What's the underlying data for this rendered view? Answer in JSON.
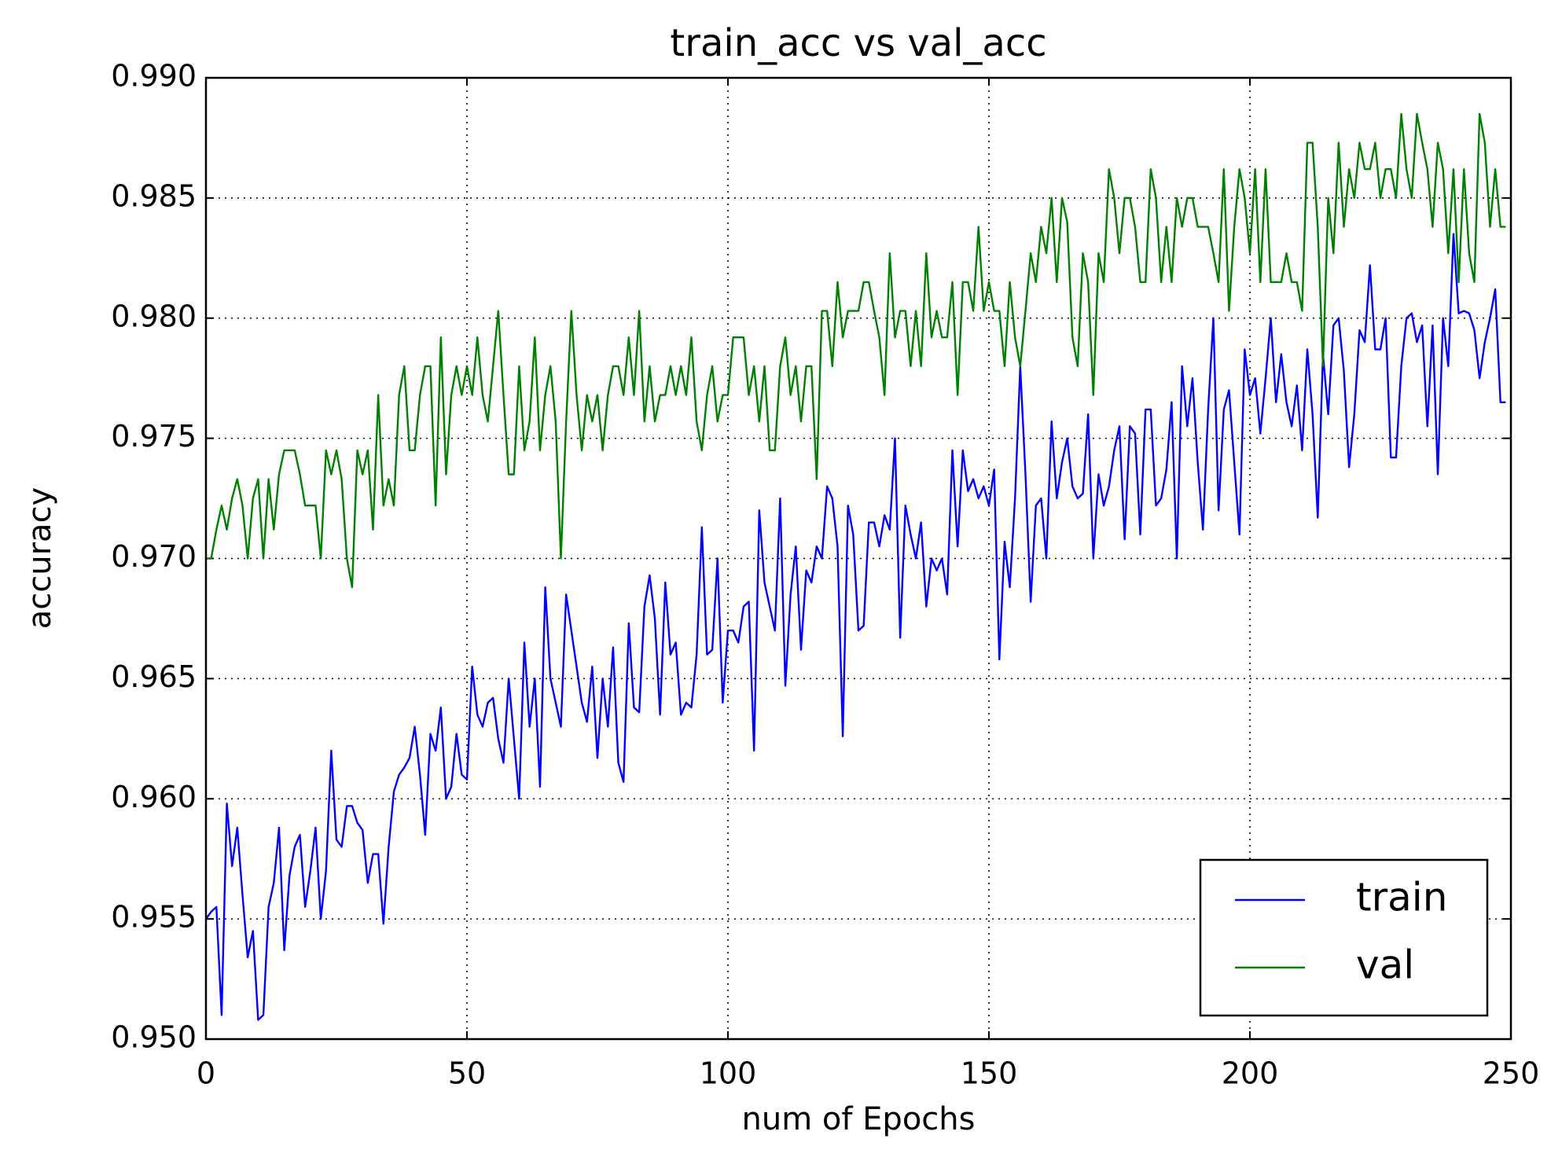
{
  "chart_data": {
    "type": "line",
    "title": "train_acc vs val_acc",
    "x_label": "num of Epochs",
    "y_label": "accuracy",
    "x": [
      0,
      1,
      2,
      3,
      4,
      5,
      6,
      7,
      8,
      9,
      10,
      11,
      12,
      13,
      14,
      15,
      16,
      17,
      18,
      19,
      20,
      21,
      22,
      23,
      24,
      25,
      26,
      27,
      28,
      29,
      30,
      31,
      32,
      33,
      34,
      35,
      36,
      37,
      38,
      39,
      40,
      41,
      42,
      43,
      44,
      45,
      46,
      47,
      48,
      49,
      50,
      51,
      52,
      53,
      54,
      55,
      56,
      57,
      58,
      59,
      60,
      61,
      62,
      63,
      64,
      65,
      66,
      67,
      68,
      69,
      70,
      71,
      72,
      73,
      74,
      75,
      76,
      77,
      78,
      79,
      80,
      81,
      82,
      83,
      84,
      85,
      86,
      87,
      88,
      89,
      90,
      91,
      92,
      93,
      94,
      95,
      96,
      97,
      98,
      99,
      100,
      101,
      102,
      103,
      104,
      105,
      106,
      107,
      108,
      109,
      110,
      111,
      112,
      113,
      114,
      115,
      116,
      117,
      118,
      119,
      120,
      121,
      122,
      123,
      124,
      125,
      126,
      127,
      128,
      129,
      130,
      131,
      132,
      133,
      134,
      135,
      136,
      137,
      138,
      139,
      140,
      141,
      142,
      143,
      144,
      145,
      146,
      147,
      148,
      149,
      150,
      151,
      152,
      153,
      154,
      155,
      156,
      157,
      158,
      159,
      160,
      161,
      162,
      163,
      164,
      165,
      166,
      167,
      168,
      169,
      170,
      171,
      172,
      173,
      174,
      175,
      176,
      177,
      178,
      179,
      180,
      181,
      182,
      183,
      184,
      185,
      186,
      187,
      188,
      189,
      190,
      191,
      192,
      193,
      194,
      195,
      196,
      197,
      198,
      199,
      200,
      201,
      202,
      203,
      204,
      205,
      206,
      207,
      208,
      209,
      210,
      211,
      212,
      213,
      214,
      215,
      216,
      217,
      218,
      219,
      220,
      221,
      222,
      223,
      224,
      225,
      226,
      227,
      228,
      229,
      230,
      231,
      232,
      233,
      234,
      235,
      236,
      237,
      238,
      239,
      240,
      241,
      242,
      243,
      244,
      245,
      246,
      247,
      248,
      249
    ],
    "series": [
      {
        "name": "train",
        "color": "#0000ff",
        "values": [
          0.955,
          0.9553,
          0.9555,
          0.951,
          0.9598,
          0.9572,
          0.9588,
          0.956,
          0.9534,
          0.9545,
          0.9508,
          0.951,
          0.9555,
          0.9565,
          0.9588,
          0.9537,
          0.9568,
          0.958,
          0.9585,
          0.9555,
          0.957,
          0.9588,
          0.955,
          0.957,
          0.962,
          0.9583,
          0.958,
          0.9597,
          0.9597,
          0.959,
          0.9587,
          0.9565,
          0.9577,
          0.9577,
          0.9548,
          0.958,
          0.9603,
          0.961,
          0.9613,
          0.9617,
          0.963,
          0.961,
          0.9585,
          0.9627,
          0.962,
          0.9638,
          0.96,
          0.9605,
          0.9627,
          0.961,
          0.9608,
          0.9655,
          0.9635,
          0.963,
          0.964,
          0.9642,
          0.9625,
          0.9615,
          0.965,
          0.9625,
          0.96,
          0.9665,
          0.963,
          0.965,
          0.9605,
          0.9688,
          0.965,
          0.964,
          0.963,
          0.9685,
          0.967,
          0.9655,
          0.964,
          0.9632,
          0.9655,
          0.9617,
          0.965,
          0.963,
          0.9663,
          0.9615,
          0.9607,
          0.9673,
          0.9638,
          0.9636,
          0.968,
          0.9693,
          0.9675,
          0.9635,
          0.969,
          0.966,
          0.9665,
          0.9635,
          0.964,
          0.9638,
          0.966,
          0.9713,
          0.966,
          0.9662,
          0.97,
          0.964,
          0.967,
          0.967,
          0.9665,
          0.968,
          0.9682,
          0.962,
          0.972,
          0.969,
          0.968,
          0.967,
          0.9725,
          0.9647,
          0.9685,
          0.9705,
          0.9662,
          0.9695,
          0.969,
          0.9705,
          0.97,
          0.973,
          0.9725,
          0.9705,
          0.9626,
          0.9722,
          0.971,
          0.967,
          0.9672,
          0.9715,
          0.9715,
          0.9705,
          0.9718,
          0.9712,
          0.975,
          0.9667,
          0.9722,
          0.971,
          0.97,
          0.9715,
          0.968,
          0.97,
          0.9695,
          0.97,
          0.9685,
          0.9745,
          0.9705,
          0.9745,
          0.9728,
          0.9733,
          0.9725,
          0.973,
          0.9722,
          0.9737,
          0.9658,
          0.9707,
          0.9688,
          0.9725,
          0.978,
          0.9735,
          0.9682,
          0.9722,
          0.9725,
          0.97,
          0.9757,
          0.9725,
          0.974,
          0.975,
          0.973,
          0.9725,
          0.9727,
          0.976,
          0.97,
          0.9735,
          0.9722,
          0.973,
          0.9745,
          0.9755,
          0.9708,
          0.9755,
          0.9752,
          0.971,
          0.9762,
          0.9762,
          0.9722,
          0.9725,
          0.9737,
          0.9765,
          0.97,
          0.978,
          0.9755,
          0.9775,
          0.974,
          0.9712,
          0.9762,
          0.98,
          0.972,
          0.9762,
          0.977,
          0.974,
          0.971,
          0.9787,
          0.9768,
          0.9775,
          0.9752,
          0.9775,
          0.98,
          0.9765,
          0.9785,
          0.9765,
          0.9755,
          0.9772,
          0.9745,
          0.9787,
          0.976,
          0.9717,
          0.9785,
          0.976,
          0.9797,
          0.98,
          0.9778,
          0.9738,
          0.976,
          0.9795,
          0.979,
          0.9822,
          0.9787,
          0.9787,
          0.98,
          0.9742,
          0.9742,
          0.978,
          0.98,
          0.9802,
          0.979,
          0.9797,
          0.9755,
          0.9797,
          0.9735,
          0.98,
          0.978,
          0.9835,
          0.9802,
          0.9803,
          0.9802,
          0.9795,
          0.9775,
          0.979,
          0.98,
          0.9812,
          0.9765,
          0.9765
        ]
      },
      {
        "name": "val",
        "color": "#008000",
        "values": [
          0.97,
          0.97,
          0.9712,
          0.9722,
          0.9712,
          0.9725,
          0.9733,
          0.9722,
          0.97,
          0.9725,
          0.9733,
          0.97,
          0.9733,
          0.9712,
          0.9735,
          0.9745,
          0.9745,
          0.9745,
          0.9735,
          0.9722,
          0.9722,
          0.9722,
          0.97,
          0.9745,
          0.9735,
          0.9745,
          0.9733,
          0.97,
          0.9688,
          0.9745,
          0.9735,
          0.9745,
          0.9712,
          0.9768,
          0.9722,
          0.9733,
          0.9722,
          0.9768,
          0.978,
          0.9745,
          0.9745,
          0.9768,
          0.978,
          0.978,
          0.9722,
          0.9792,
          0.9735,
          0.9768,
          0.978,
          0.9768,
          0.978,
          0.9768,
          0.9792,
          0.9768,
          0.9757,
          0.978,
          0.9803,
          0.9768,
          0.9735,
          0.9735,
          0.978,
          0.9745,
          0.9757,
          0.9792,
          0.9745,
          0.9768,
          0.978,
          0.9757,
          0.97,
          0.9757,
          0.9803,
          0.9768,
          0.9745,
          0.9768,
          0.9757,
          0.9768,
          0.9745,
          0.9768,
          0.978,
          0.978,
          0.9768,
          0.9792,
          0.9768,
          0.9803,
          0.9757,
          0.978,
          0.9757,
          0.9768,
          0.9768,
          0.978,
          0.9768,
          0.978,
          0.9768,
          0.9792,
          0.9757,
          0.9745,
          0.9768,
          0.978,
          0.9757,
          0.9768,
          0.9768,
          0.9792,
          0.9792,
          0.9792,
          0.9768,
          0.978,
          0.9757,
          0.978,
          0.9745,
          0.9745,
          0.978,
          0.9792,
          0.9768,
          0.978,
          0.9757,
          0.978,
          0.978,
          0.9733,
          0.9803,
          0.9803,
          0.978,
          0.9815,
          0.9792,
          0.9803,
          0.9803,
          0.9803,
          0.9815,
          0.9815,
          0.9803,
          0.9792,
          0.9768,
          0.9827,
          0.9792,
          0.9803,
          0.9803,
          0.978,
          0.9803,
          0.978,
          0.9827,
          0.9792,
          0.9803,
          0.9792,
          0.9792,
          0.9815,
          0.9768,
          0.9815,
          0.9815,
          0.9803,
          0.9838,
          0.9803,
          0.9815,
          0.9803,
          0.9803,
          0.978,
          0.9815,
          0.9792,
          0.978,
          0.9803,
          0.9827,
          0.9815,
          0.9838,
          0.9827,
          0.985,
          0.9815,
          0.985,
          0.984,
          0.9792,
          0.978,
          0.9827,
          0.9815,
          0.9768,
          0.9827,
          0.9815,
          0.9862,
          0.985,
          0.9827,
          0.985,
          0.985,
          0.9838,
          0.9815,
          0.9815,
          0.9862,
          0.985,
          0.9815,
          0.9838,
          0.9815,
          0.985,
          0.9838,
          0.985,
          0.985,
          0.9838,
          0.9838,
          0.9838,
          0.9827,
          0.9815,
          0.9862,
          0.9803,
          0.9838,
          0.9862,
          0.985,
          0.9827,
          0.9862,
          0.9815,
          0.9862,
          0.9815,
          0.9815,
          0.9815,
          0.9827,
          0.9815,
          0.9815,
          0.9803,
          0.9873,
          0.9873,
          0.9838,
          0.978,
          0.985,
          0.9827,
          0.9873,
          0.9838,
          0.9862,
          0.985,
          0.9873,
          0.9862,
          0.9862,
          0.9873,
          0.985,
          0.9862,
          0.9862,
          0.985,
          0.9885,
          0.9862,
          0.985,
          0.9885,
          0.9873,
          0.9862,
          0.9838,
          0.9873,
          0.9862,
          0.9827,
          0.9862,
          0.9815,
          0.9862,
          0.9827,
          0.9815,
          0.9885,
          0.9873,
          0.9838,
          0.9862,
          0.9838,
          0.9838
        ]
      }
    ],
    "xlim": [
      0,
      250
    ],
    "xticks": [
      0,
      50,
      100,
      150,
      200,
      250
    ],
    "ylim": [
      0.95,
      0.99
    ],
    "yticks": [
      {
        "value": 0.95,
        "label": "0.950"
      },
      0.955,
      {
        "value": 0.96,
        "label": "0.960"
      },
      0.965,
      {
        "value": 0.97,
        "label": "0.970"
      },
      0.975,
      {
        "value": 0.98,
        "label": "0.980"
      },
      0.985,
      {
        "value": 0.99,
        "label": "0.990"
      }
    ],
    "grid": true,
    "legend": "lower right"
  }
}
